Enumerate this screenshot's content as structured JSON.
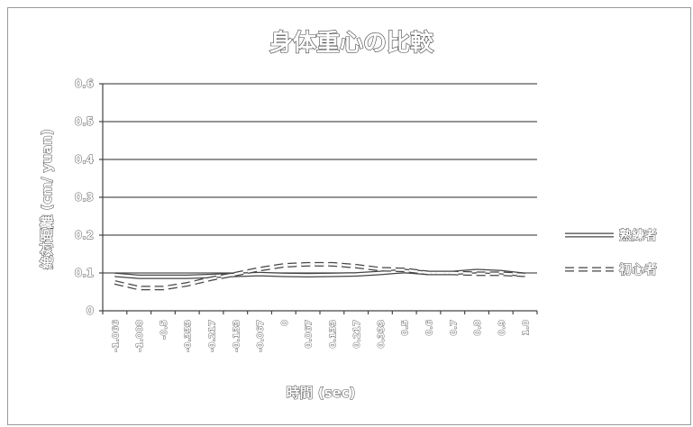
{
  "chart_data": {
    "type": "line",
    "title": "身体重心の比較",
    "xlabel": "時間 (sec)",
    "ylabel": "絶対距離 (cm/ yuan)",
    "ylim": [
      0,
      0.6
    ],
    "yticks": [
      "0",
      "0.1",
      "0.2",
      "0.3",
      "0.4",
      "0.5",
      "0.6"
    ],
    "categories": [
      "-1.066",
      "-1.008",
      "-0.5",
      "-0.333",
      "-0.217",
      "-0.133",
      "-0.067",
      "0",
      "0.067",
      "0.133",
      "0.217",
      "0.333",
      "0.5",
      "0.6",
      "0.7",
      "0.8",
      "0.9",
      "1.0"
    ],
    "grid": true,
    "legend_position": "right",
    "series": [
      {
        "name": "熟練者",
        "style": "solid",
        "values": [
          0.095,
          0.09,
          0.09,
          0.09,
          0.092,
          0.095,
          0.097,
          0.095,
          0.094,
          0.095,
          0.096,
          0.1,
          0.105,
          0.1,
          0.1,
          0.105,
          0.102,
          0.095
        ]
      },
      {
        "name": "初心者",
        "style": "dashed",
        "values": [
          0.075,
          0.06,
          0.06,
          0.07,
          0.085,
          0.097,
          0.11,
          0.12,
          0.123,
          0.123,
          0.118,
          0.11,
          0.108,
          0.1,
          0.1,
          0.098,
          0.098,
          0.095
        ]
      }
    ]
  }
}
